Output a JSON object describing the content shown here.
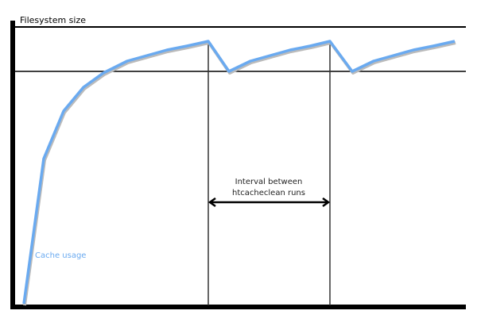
{
  "labels": {
    "y_axis": "Filesystem size",
    "series": "Cache usage",
    "interval_line1": "Interval between",
    "interval_line2": "htcacheclean runs"
  },
  "colors": {
    "curve": "#6aaaf0",
    "axis": "#000000",
    "series_label": "#6aaaf0"
  }
}
